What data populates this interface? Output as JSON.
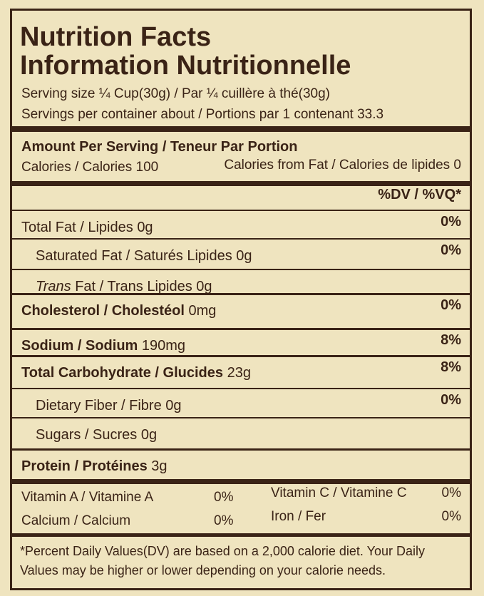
{
  "header": {
    "title": "Nutrition Facts",
    "title_fr": "Information Nutritionnelle"
  },
  "serving": {
    "size": "Serving size ¼ Cup(30g) / Par ¼ cuillère à thé(30g)",
    "per_container": "Servings per container about / Portions par 1 contenant 33.3"
  },
  "amount": {
    "heading": "Amount Per Serving / Teneur Par Portion",
    "calories": "Calories / Calories 100",
    "calories_fat": "Calories from Fat / Calories de lipides  0",
    "dv_heading": "%DV / %VQ*"
  },
  "nutrients": [
    {
      "name": "Total Fat / Lipides",
      "amount": "0g",
      "dv": "0%"
    },
    {
      "name": "Saturated Fat / Saturés Lipides",
      "amount": "0g",
      "dv": "0%"
    },
    {
      "name_italic": "Trans",
      "name": " Fat / Trans Lipides",
      "amount": "0g"
    },
    {
      "name": "Cholesterol / Cholestéol",
      "amount": "0mg",
      "dv": "0%"
    },
    {
      "name": "Sodium / Sodium",
      "amount": "190mg",
      "dv": "8%"
    },
    {
      "name": "Total Carbohydrate / Glucides",
      "amount": "23g",
      "dv": "8%"
    },
    {
      "name": "Dietary Fiber / Fibre",
      "amount": "0g",
      "dv": "0%"
    },
    {
      "name": "Sugars / Sucres",
      "amount": "0g"
    },
    {
      "name": "Protein / Protéines",
      "amount": "3g"
    }
  ],
  "vitamins": [
    [
      "Vitamin A / Vitamine A",
      "0%",
      "Vitamin C / Vitamine C",
      "0%"
    ],
    [
      "Calcium / Calcium",
      "0%",
      "Iron / Fer",
      "0%"
    ]
  ],
  "footnote": "*Percent Daily Values(DV) are based on a 2,000 calorie diet. Your Daily Values may be higher or lower depending on your calorie needs."
}
